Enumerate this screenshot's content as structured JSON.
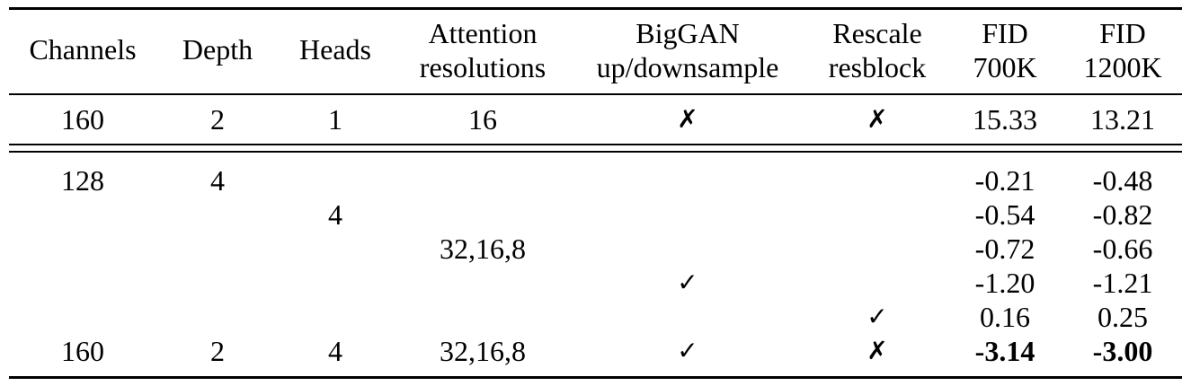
{
  "headers": {
    "channels": "Channels",
    "depth": "Depth",
    "heads": "Heads",
    "attention_l1": "Attention",
    "attention_l2": "resolutions",
    "biggan_l1": "BigGAN",
    "biggan_l2": "up/downsample",
    "rescale_l1": "Rescale",
    "rescale_l2": "resblock",
    "fid700_l1": "FID",
    "fid700_l2": "700K",
    "fid1200_l1": "FID",
    "fid1200_l2": "1200K"
  },
  "baseline": {
    "channels": "160",
    "depth": "2",
    "heads": "1",
    "attention": "16",
    "biggan": "✗",
    "rescale": "✗",
    "fid700": "15.33",
    "fid1200": "13.21"
  },
  "ablations": [
    {
      "channels": "128",
      "depth": "4",
      "heads": "",
      "attention": "",
      "biggan": "",
      "rescale": "",
      "fid700": "-0.21",
      "fid1200": "-0.48"
    },
    {
      "channels": "",
      "depth": "",
      "heads": "4",
      "attention": "",
      "biggan": "",
      "rescale": "",
      "fid700": "-0.54",
      "fid1200": "-0.82"
    },
    {
      "channels": "",
      "depth": "",
      "heads": "",
      "attention": "32,16,8",
      "biggan": "",
      "rescale": "",
      "fid700": "-0.72",
      "fid1200": "-0.66"
    },
    {
      "channels": "",
      "depth": "",
      "heads": "",
      "attention": "",
      "biggan": "✓",
      "rescale": "",
      "fid700": "-1.20",
      "fid1200": "-1.21"
    },
    {
      "channels": "",
      "depth": "",
      "heads": "",
      "attention": "",
      "biggan": "",
      "rescale": "✓",
      "fid700": "0.16",
      "fid1200": "0.25"
    },
    {
      "channels": "160",
      "depth": "2",
      "heads": "4",
      "attention": "32,16,8",
      "biggan": "✓",
      "rescale": "✗",
      "fid700": "-3.14",
      "fid1200": "-3.00"
    }
  ]
}
